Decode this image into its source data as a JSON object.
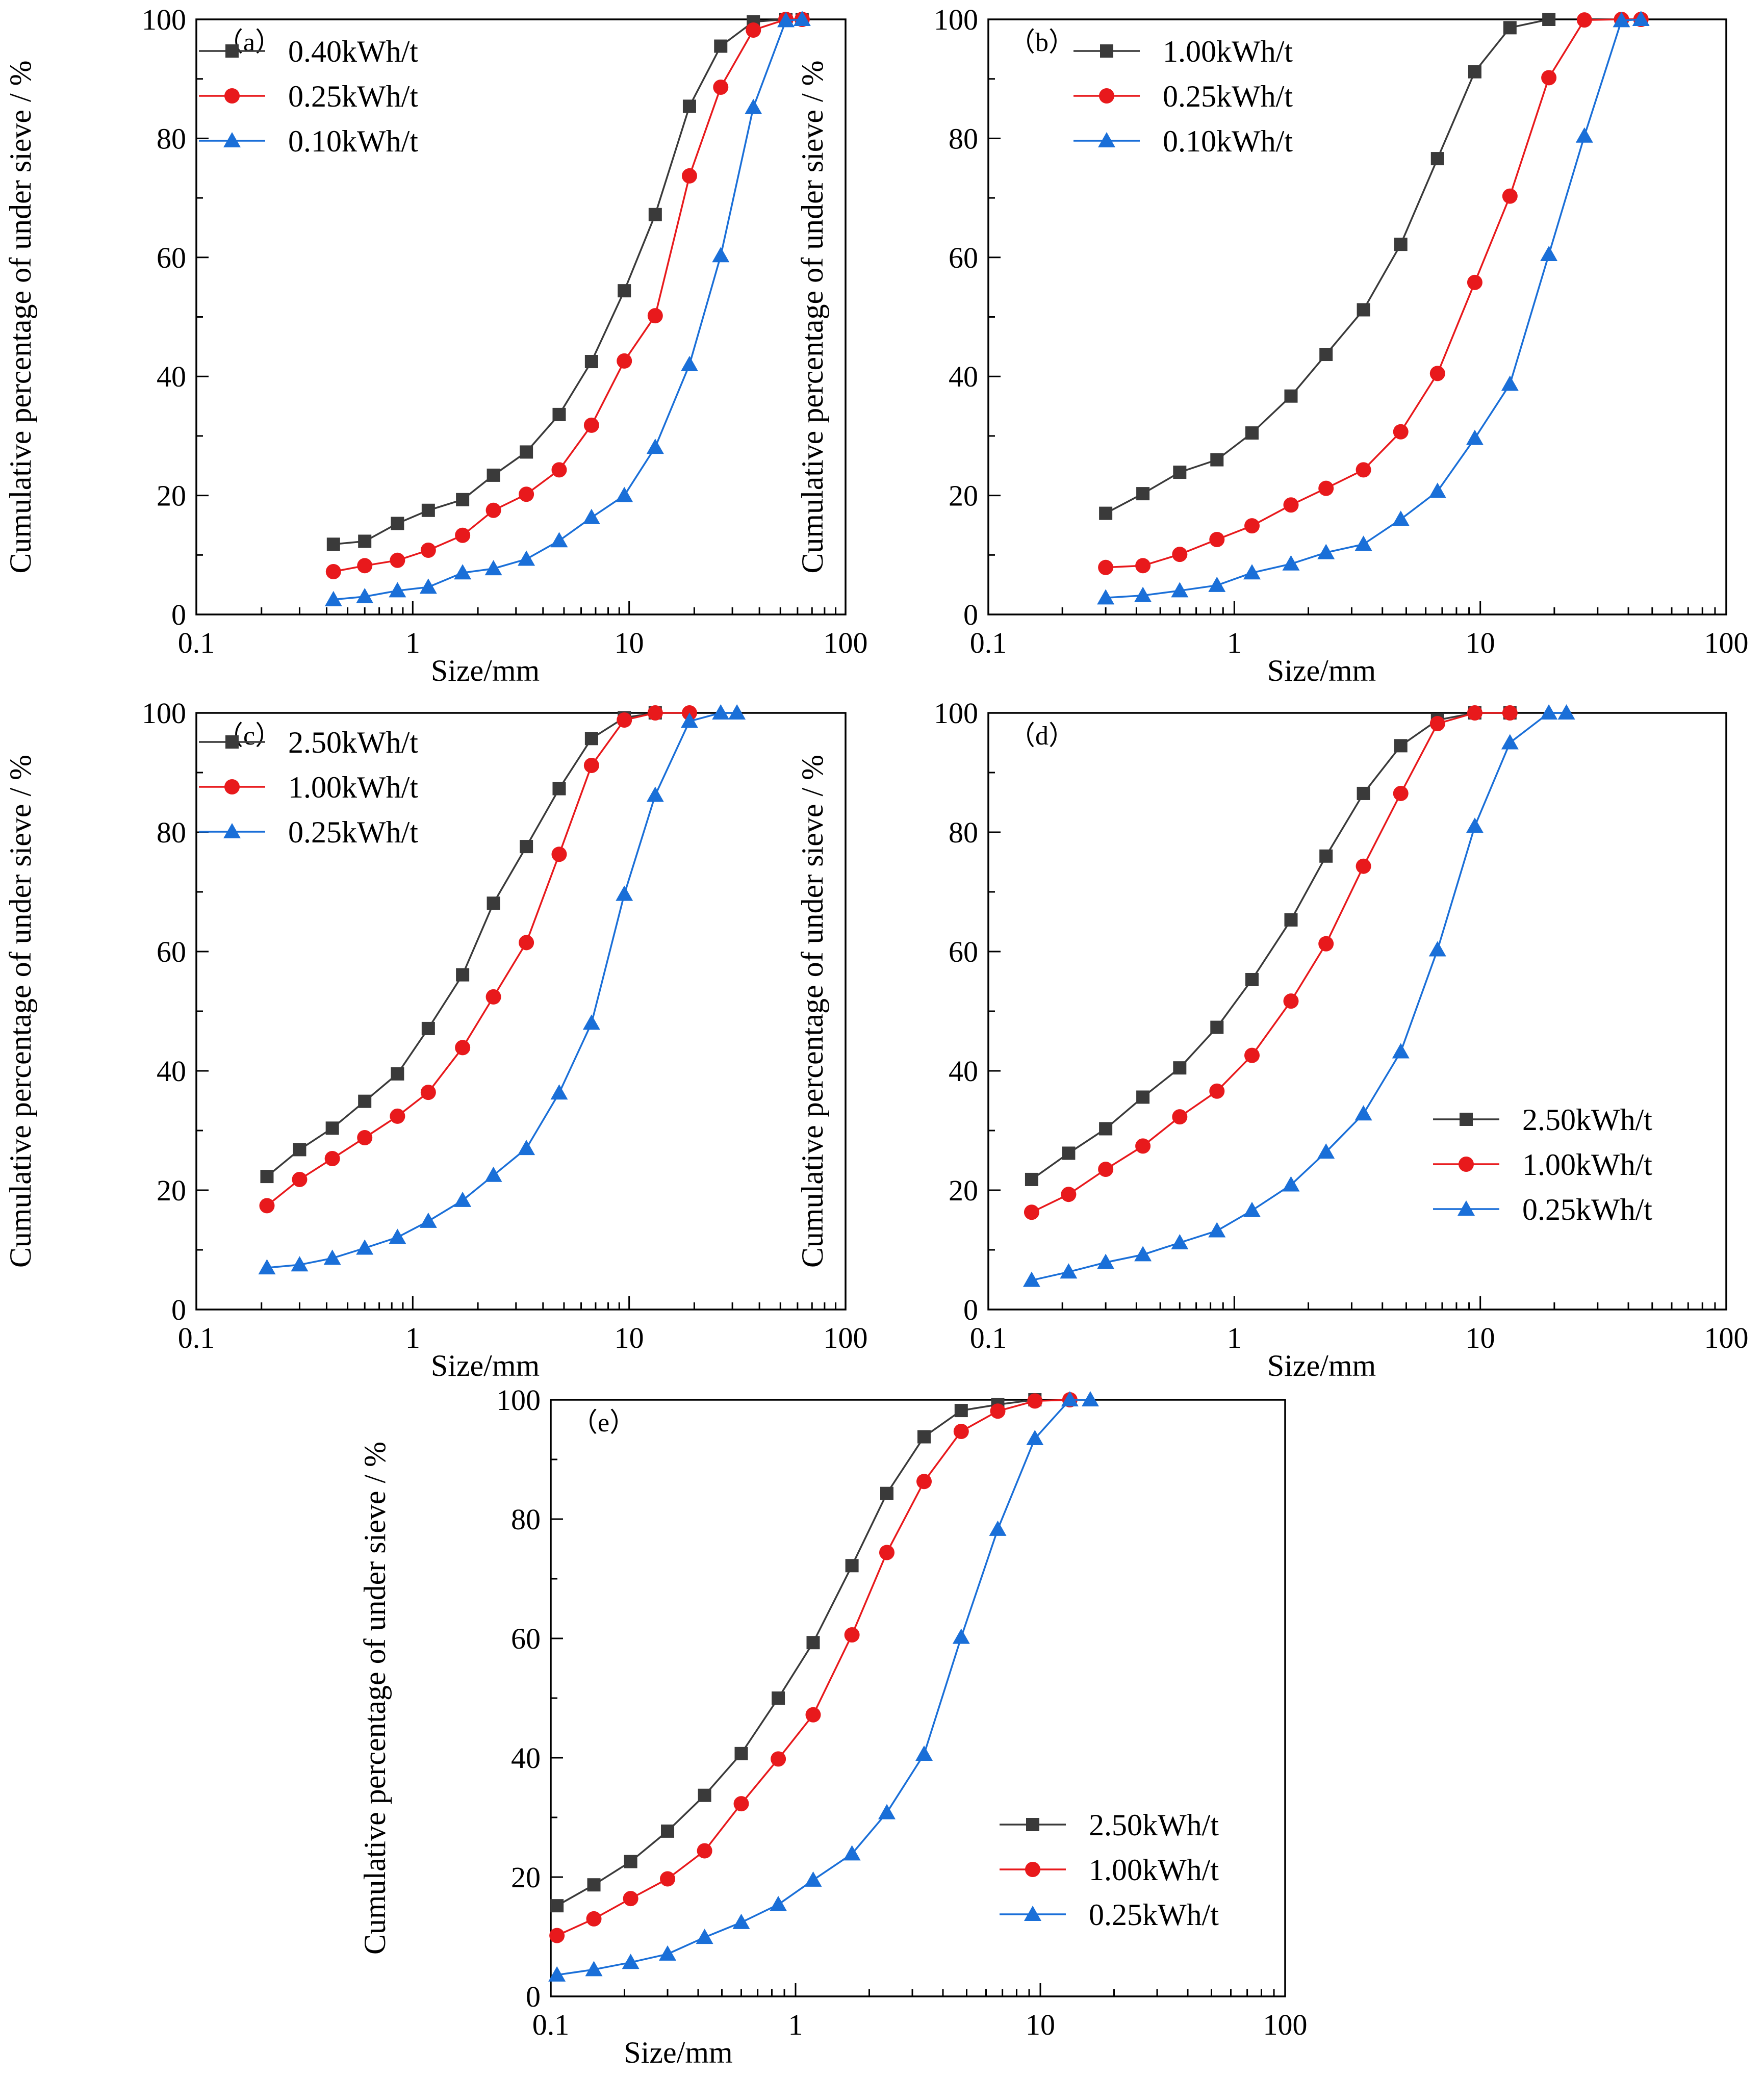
{
  "colors": {
    "black": "#3a3a3a",
    "red": "#e8191c",
    "blue": "#1a6fd8",
    "axis": "#000000"
  },
  "chart_data": [
    {
      "panel_label": "（a）",
      "type": "line",
      "xscale": "log",
      "xlim": [
        0.1,
        100
      ],
      "ylim": [
        0,
        100
      ],
      "xlabel": "Size/mm",
      "ylabel": "Cumulative percentage of under sieve / %",
      "x_ticks": [
        "0.1",
        "1",
        "10",
        "100"
      ],
      "y_ticks": [
        "0",
        "20",
        "40",
        "60",
        "80",
        "100"
      ],
      "legend_position": "top-left",
      "series": [
        {
          "name": "0.40kWh/t",
          "marker": "square",
          "color": "#3a3a3a",
          "x": [
            0.43,
            0.6,
            0.85,
            1.18,
            1.7,
            2.36,
            3.35,
            4.75,
            6.7,
            9.5,
            13.2,
            19,
            26.5,
            37.5,
            53,
            63
          ],
          "y": [
            11.8,
            12.3,
            15.3,
            17.5,
            19.3,
            23.4,
            27.3,
            33.6,
            42.5,
            54.4,
            67.2,
            85.4,
            95.5,
            99.6,
            100,
            100
          ]
        },
        {
          "name": "0.25kWh/t",
          "marker": "circle",
          "color": "#e8191c",
          "x": [
            0.43,
            0.6,
            0.85,
            1.18,
            1.7,
            2.36,
            3.35,
            4.75,
            6.7,
            9.5,
            13.2,
            19,
            26.5,
            37.5,
            53,
            63
          ],
          "y": [
            7.2,
            8.2,
            9.1,
            10.8,
            13.3,
            17.5,
            20.2,
            24.3,
            31.8,
            42.6,
            50.2,
            73.7,
            88.6,
            98.2,
            100,
            100
          ]
        },
        {
          "name": "0.10kWh/t",
          "marker": "triangle",
          "color": "#1a6fd8",
          "x": [
            0.43,
            0.6,
            0.85,
            1.18,
            1.7,
            2.36,
            3.35,
            4.75,
            6.7,
            9.5,
            13.2,
            19,
            26.5,
            37.5,
            53,
            63
          ],
          "y": [
            2.5,
            3.0,
            4.0,
            4.6,
            7.0,
            7.7,
            9.3,
            12.4,
            16.3,
            20.0,
            28.1,
            42.0,
            60.3,
            85.2,
            99.8,
            100
          ]
        }
      ]
    },
    {
      "panel_label": "（b）",
      "type": "line",
      "xscale": "log",
      "xlim": [
        0.1,
        100
      ],
      "ylim": [
        0,
        100
      ],
      "xlabel": "Size/mm",
      "ylabel": "Cumulative percentage of under sieve / %",
      "x_ticks": [
        "0.1",
        "1",
        "10",
        "100"
      ],
      "y_ticks": [
        "0",
        "20",
        "40",
        "60",
        "80",
        "100"
      ],
      "legend_position": "top-left",
      "series": [
        {
          "name": "1.00kWh/t",
          "marker": "square",
          "color": "#3a3a3a",
          "x": [
            0.3,
            0.425,
            0.6,
            0.85,
            1.18,
            1.7,
            2.36,
            3.35,
            4.75,
            6.7,
            9.5,
            13.2,
            19
          ],
          "y": [
            17.0,
            20.3,
            23.9,
            26.0,
            30.5,
            36.7,
            43.7,
            51.2,
            62.2,
            76.6,
            91.2,
            98.6,
            100
          ]
        },
        {
          "name": "0.25kWh/t",
          "marker": "circle",
          "color": "#e8191c",
          "x": [
            0.3,
            0.425,
            0.6,
            0.85,
            1.18,
            1.7,
            2.36,
            3.35,
            4.75,
            6.7,
            9.5,
            13.2,
            19,
            26.5,
            37.5,
            45
          ],
          "y": [
            7.9,
            8.2,
            10.1,
            12.6,
            14.9,
            18.4,
            21.2,
            24.3,
            30.7,
            40.5,
            55.8,
            70.3,
            90.2,
            99.9,
            100,
            100
          ]
        },
        {
          "name": "0.10kWh/t",
          "marker": "triangle",
          "color": "#1a6fd8",
          "x": [
            0.3,
            0.425,
            0.6,
            0.85,
            1.18,
            1.7,
            2.36,
            3.35,
            4.75,
            6.7,
            9.5,
            13.2,
            19,
            26.5,
            37.5,
            45
          ],
          "y": [
            2.8,
            3.2,
            4.0,
            4.9,
            7.0,
            8.5,
            10.4,
            11.8,
            16.0,
            20.7,
            29.6,
            38.7,
            60.5,
            80.4,
            99.8,
            100
          ]
        }
      ]
    },
    {
      "panel_label": "（c）",
      "type": "line",
      "xscale": "log",
      "xlim": [
        0.1,
        100
      ],
      "ylim": [
        0,
        100
      ],
      "xlabel": "Size/mm",
      "ylabel": "Cumulative percentage of under sieve / %",
      "x_ticks": [
        "0.1",
        "1",
        "10",
        "100"
      ],
      "y_ticks": [
        "0",
        "20",
        "40",
        "60",
        "80",
        "100"
      ],
      "legend_position": "top-left",
      "series": [
        {
          "name": "2.50kWh/t",
          "marker": "square",
          "color": "#3a3a3a",
          "x": [
            0.212,
            0.3,
            0.425,
            0.6,
            0.85,
            1.18,
            1.7,
            2.36,
            3.35,
            4.75,
            6.7,
            9.5,
            13.2
          ],
          "y": [
            22.3,
            26.8,
            30.4,
            34.9,
            39.5,
            47.1,
            56.1,
            68.1,
            77.6,
            87.3,
            95.7,
            99.2,
            100
          ]
        },
        {
          "name": "1.00kWh/t",
          "marker": "circle",
          "color": "#e8191c",
          "x": [
            0.212,
            0.3,
            0.425,
            0.6,
            0.85,
            1.18,
            1.7,
            2.36,
            3.35,
            4.75,
            6.7,
            9.5,
            13.2,
            19
          ],
          "y": [
            17.4,
            21.8,
            25.3,
            28.8,
            32.4,
            36.4,
            43.9,
            52.4,
            61.5,
            76.3,
            91.2,
            98.8,
            100,
            100
          ]
        },
        {
          "name": "0.25kWh/t",
          "marker": "triangle",
          "color": "#1a6fd8",
          "x": [
            0.212,
            0.3,
            0.425,
            0.6,
            0.85,
            1.18,
            1.7,
            2.36,
            3.35,
            4.75,
            6.7,
            9.5,
            13.2,
            19,
            26.5,
            31.5
          ],
          "y": [
            7.0,
            7.5,
            8.6,
            10.3,
            12.1,
            14.8,
            18.3,
            22.5,
            27.0,
            36.3,
            48.0,
            69.6,
            86.2,
            98.6,
            100,
            100
          ]
        }
      ]
    },
    {
      "panel_label": "（d）",
      "type": "line",
      "xscale": "log",
      "xlim": [
        0.1,
        100
      ],
      "ylim": [
        0,
        100
      ],
      "xlabel": "Size/mm",
      "ylabel": "Cumulative percentage of under sieve / %",
      "x_ticks": [
        "0.1",
        "1",
        "10",
        "100"
      ],
      "y_ticks": [
        "0",
        "20",
        "40",
        "60",
        "80",
        "100"
      ],
      "legend_position": "middle-right",
      "series": [
        {
          "name": "2.50kWh/t",
          "marker": "square",
          "color": "#3a3a3a",
          "x": [
            0.15,
            0.212,
            0.3,
            0.425,
            0.6,
            0.85,
            1.18,
            1.7,
            2.36,
            3.35,
            4.75,
            6.7,
            9.5,
            13.2
          ],
          "y": [
            21.8,
            26.2,
            30.3,
            35.6,
            40.5,
            47.3,
            55.3,
            65.3,
            76.0,
            86.5,
            94.5,
            98.8,
            100,
            100
          ]
        },
        {
          "name": "1.00kWh/t",
          "marker": "circle",
          "color": "#e8191c",
          "x": [
            0.15,
            0.212,
            0.3,
            0.425,
            0.6,
            0.85,
            1.18,
            1.7,
            2.36,
            3.35,
            4.75,
            6.7,
            9.5,
            13.2
          ],
          "y": [
            16.3,
            19.3,
            23.5,
            27.4,
            32.3,
            36.6,
            42.6,
            51.7,
            61.3,
            74.3,
            86.5,
            98.2,
            100,
            100
          ]
        },
        {
          "name": "0.25kWh/t",
          "marker": "triangle",
          "color": "#1a6fd8",
          "x": [
            0.15,
            0.212,
            0.3,
            0.425,
            0.6,
            0.85,
            1.18,
            1.7,
            2.36,
            3.35,
            4.75,
            6.7,
            9.5,
            13.2,
            19,
            22.4
          ],
          "y": [
            4.9,
            6.3,
            7.9,
            9.2,
            11.2,
            13.2,
            16.6,
            20.9,
            26.4,
            32.8,
            43.2,
            60.3,
            81.0,
            95.0,
            100,
            100
          ]
        }
      ]
    },
    {
      "panel_label": "（e）",
      "type": "line",
      "xscale": "log",
      "xlim": [
        0.1,
        100
      ],
      "ylim": [
        0,
        100
      ],
      "xlabel": "Size/mm",
      "ylabel": "Cumulative percentage of under sieve / %",
      "x_ticks": [
        "0.1",
        "1",
        "10",
        "100"
      ],
      "y_ticks": [
        "0",
        "20",
        "40",
        "60",
        "80",
        "100"
      ],
      "legend_position": "bottom-right",
      "series": [
        {
          "name": "2.50kWh/t",
          "marker": "square",
          "color": "#3a3a3a",
          "x": [
            0.106,
            0.15,
            0.212,
            0.3,
            0.425,
            0.6,
            0.85,
            1.18,
            1.7,
            2.36,
            3.35,
            4.75,
            6.7,
            9.5
          ],
          "y": [
            15.2,
            18.7,
            22.6,
            27.7,
            33.7,
            40.7,
            50.0,
            59.3,
            72.2,
            84.3,
            93.8,
            98.2,
            99.2,
            100
          ]
        },
        {
          "name": "1.00kWh/t",
          "marker": "circle",
          "color": "#e8191c",
          "x": [
            0.106,
            0.15,
            0.212,
            0.3,
            0.425,
            0.6,
            0.85,
            1.18,
            1.7,
            2.36,
            3.35,
            4.75,
            6.7,
            9.5,
            13.2
          ],
          "y": [
            10.2,
            13.0,
            16.4,
            19.7,
            24.4,
            32.3,
            39.8,
            47.2,
            60.6,
            74.4,
            86.3,
            94.7,
            98.1,
            99.8,
            100
          ]
        },
        {
          "name": "0.25kWh/t",
          "marker": "triangle",
          "color": "#1a6fd8",
          "x": [
            0.106,
            0.15,
            0.212,
            0.3,
            0.425,
            0.6,
            0.85,
            1.18,
            1.7,
            2.36,
            3.35,
            4.75,
            6.7,
            9.5,
            13.2,
            16
          ],
          "y": [
            3.6,
            4.5,
            5.7,
            7.1,
            9.9,
            12.4,
            15.4,
            19.5,
            23.9,
            30.8,
            40.6,
            60.2,
            78.3,
            93.5,
            100,
            100
          ]
        }
      ]
    }
  ]
}
